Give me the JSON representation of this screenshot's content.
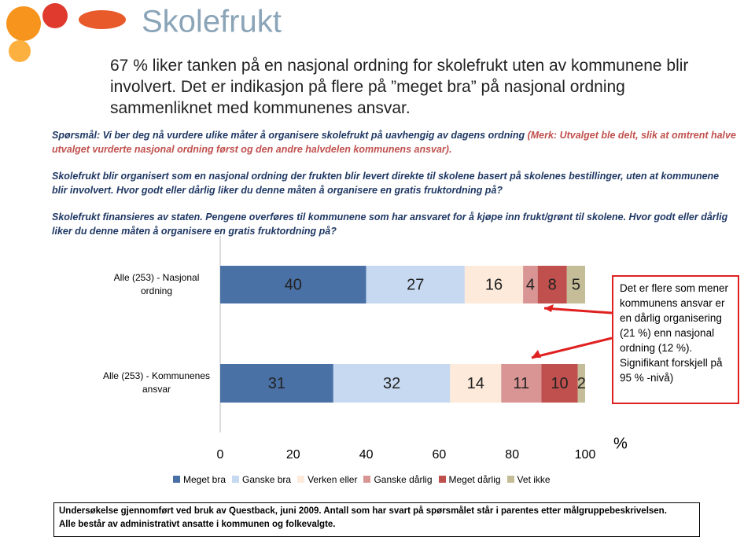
{
  "logo": "Skolefrukt",
  "title": "67 % liker tanken på en nasjonal ordning for skolefrukt uten av kommunene blir involvert. Det er indikasjon på flere på ”meget bra” på nasjonal ordning sammenliknet med kommunenes ansvar.",
  "question": {
    "main": "Spørsmål: Vi ber deg nå vurdere ulike måter å organisere skolefrukt på uavhengig av dagens ordning",
    "note": "(Merk: Utvalget ble delt, slik at omtrent halve utvalget vurderte nasjonal ordning først og den andre halvdelen kommunens ansvar)."
  },
  "texts": [
    "Skolefrukt blir organisert som en nasjonal ordning der frukten blir levert direkte til skolene basert på skolenes bestillinger, uten at kommunene blir involvert. Hvor godt eller dårlig liker du denne måten å organisere en gratis fruktordning på?",
    "Skolefrukt finansieres av staten. Pengene overføres til kommunene som har ansvaret for å kjøpe inn frukt/grønt til skolene. Hvor godt eller dårlig liker du denne måten å organisere en gratis fruktordning på?"
  ],
  "chart_data": {
    "type": "stacked-bar-horizontal",
    "categories": [
      "Alle (253) - Nasjonal ordning",
      "Alle (253) - Kommunenes ansvar"
    ],
    "series": [
      {
        "name": "Meget bra",
        "color": "#4a71a6",
        "values": [
          40,
          31
        ]
      },
      {
        "name": "Ganske bra",
        "color": "#c6d9f1",
        "values": [
          27,
          32
        ]
      },
      {
        "name": "Verken eller",
        "color": "#fdeada",
        "values": [
          16,
          14
        ]
      },
      {
        "name": "Ganske dårlig",
        "color": "#d99594",
        "values": [
          4,
          11
        ]
      },
      {
        "name": "Meget dårlig",
        "color": "#c0504d",
        "values": [
          8,
          10
        ]
      },
      {
        "name": "Vet ikke",
        "color": "#c4bd97",
        "values": [
          5,
          2
        ]
      }
    ],
    "xlim": [
      0,
      100
    ],
    "xticks": [
      0,
      20,
      40,
      60,
      80,
      100
    ],
    "x_label": "%",
    "legend": "bottom"
  },
  "callout": "Det er flere som mener kommunens ansvar er en dårlig organisering (21 %) enn nasjonal ordning (12 %). Signifikant forskjell på 95 % -nivå)",
  "footer": [
    "Undersøkelse gjennomført ved bruk av Questback, juni 2009. Antall som har svart på spørsmålet står i parentes etter målgruppebeskrivelsen.",
    "Alle består av administrativt ansatte i kommunen og folkevalgte."
  ]
}
